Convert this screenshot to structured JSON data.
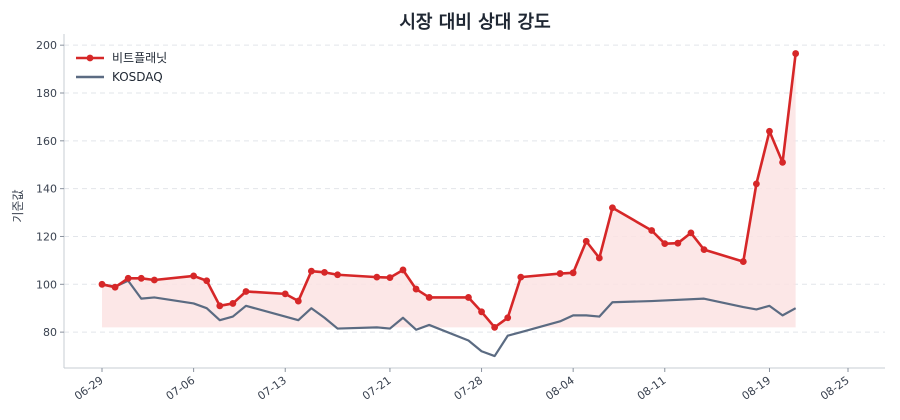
{
  "chart_data": {
    "type": "line",
    "title": "시장 대비 상대 강도",
    "xlabel": "",
    "ylabel": "기준값",
    "ylim": [
      65,
      203
    ],
    "yticks": [
      80,
      100,
      120,
      140,
      160,
      180,
      200
    ],
    "x": [
      "06-29",
      "06-30",
      "07-01",
      "07-02",
      "07-03",
      "07-04",
      "07-05",
      "07-06",
      "07-07",
      "07-08",
      "07-09",
      "07-10",
      "07-11",
      "07-12",
      "07-13",
      "07-14",
      "07-15",
      "07-16",
      "07-17",
      "07-18",
      "07-19",
      "07-20",
      "07-21",
      "07-22",
      "07-23",
      "07-24",
      "07-25",
      "07-26",
      "07-27",
      "07-28",
      "07-29",
      "07-30",
      "07-31",
      "08-01",
      "08-02",
      "08-03",
      "08-04",
      "08-05",
      "08-06",
      "08-07",
      "08-08",
      "08-09",
      "08-10",
      "08-11",
      "08-12",
      "08-13",
      "08-14",
      "08-15",
      "08-16",
      "08-17",
      "08-18",
      "08-19",
      "08-20",
      "08-21",
      "08-22",
      "08-23",
      "08-24",
      "08-25"
    ],
    "xtick_labels": [
      "06-29",
      "07-06",
      "07-13",
      "07-21",
      "07-28",
      "08-04",
      "08-11",
      "08-19",
      "08-25"
    ],
    "grid": "y-dashed",
    "legend": "top-left",
    "fill_between": {
      "series": "비트플래닛",
      "baseline": 82
    },
    "series": [
      {
        "name": "비트플래닛",
        "color": "#d62728",
        "fill_color": "#fbe3e3",
        "markers": true,
        "points": [
          {
            "x": "06-29",
            "y": 100.0
          },
          {
            "x": "06-30",
            "y": 98.8
          },
          {
            "x": "07-01",
            "y": 102.5
          },
          {
            "x": "07-02",
            "y": 102.5
          },
          {
            "x": "07-03",
            "y": 101.8
          },
          {
            "x": "07-06",
            "y": 103.5
          },
          {
            "x": "07-07",
            "y": 101.5
          },
          {
            "x": "07-08",
            "y": 91.0
          },
          {
            "x": "07-09",
            "y": 92.0
          },
          {
            "x": "07-10",
            "y": 97.0
          },
          {
            "x": "07-13",
            "y": 96.0
          },
          {
            "x": "07-14",
            "y": 93.0
          },
          {
            "x": "07-15",
            "y": 105.5
          },
          {
            "x": "07-16",
            "y": 105.0
          },
          {
            "x": "07-17",
            "y": 104.0
          },
          {
            "x": "07-20",
            "y": 103.0
          },
          {
            "x": "07-21",
            "y": 102.8
          },
          {
            "x": "07-22",
            "y": 106.0
          },
          {
            "x": "07-23",
            "y": 98.0
          },
          {
            "x": "07-24",
            "y": 94.5
          },
          {
            "x": "07-27",
            "y": 94.5
          },
          {
            "x": "07-28",
            "y": 88.5
          },
          {
            "x": "07-29",
            "y": 82.0
          },
          {
            "x": "07-30",
            "y": 86.0
          },
          {
            "x": "07-31",
            "y": 103.0
          },
          {
            "x": "08-03",
            "y": 104.5
          },
          {
            "x": "08-04",
            "y": 104.8
          },
          {
            "x": "08-05",
            "y": 118.0
          },
          {
            "x": "08-06",
            "y": 111.0
          },
          {
            "x": "08-07",
            "y": 132.0
          },
          {
            "x": "08-10",
            "y": 122.5
          },
          {
            "x": "08-11",
            "y": 117.0
          },
          {
            "x": "08-12",
            "y": 117.2
          },
          {
            "x": "08-13",
            "y": 121.5
          },
          {
            "x": "08-14",
            "y": 114.5
          },
          {
            "x": "08-17",
            "y": 109.5
          },
          {
            "x": "08-18",
            "y": 142.0
          },
          {
            "x": "08-19",
            "y": 164.0
          },
          {
            "x": "08-20",
            "y": 151.0
          },
          {
            "x": "08-21",
            "y": 196.5
          }
        ]
      },
      {
        "name": "KOSDAQ",
        "color": "#5b6b82",
        "markers": false,
        "points": [
          {
            "x": "06-29",
            "y": 100.0
          },
          {
            "x": "06-30",
            "y": 99.0
          },
          {
            "x": "07-01",
            "y": 101.5
          },
          {
            "x": "07-02",
            "y": 94.0
          },
          {
            "x": "07-03",
            "y": 94.5
          },
          {
            "x": "07-06",
            "y": 92.0
          },
          {
            "x": "07-07",
            "y": 90.0
          },
          {
            "x": "07-08",
            "y": 85.0
          },
          {
            "x": "07-09",
            "y": 86.5
          },
          {
            "x": "07-10",
            "y": 91.0
          },
          {
            "x": "07-13",
            "y": 86.5
          },
          {
            "x": "07-14",
            "y": 85.0
          },
          {
            "x": "07-15",
            "y": 90.0
          },
          {
            "x": "07-16",
            "y": 86.0
          },
          {
            "x": "07-17",
            "y": 81.5
          },
          {
            "x": "07-20",
            "y": 82.0
          },
          {
            "x": "07-21",
            "y": 81.5
          },
          {
            "x": "07-22",
            "y": 86.0
          },
          {
            "x": "07-23",
            "y": 81.0
          },
          {
            "x": "07-24",
            "y": 83.0
          },
          {
            "x": "07-27",
            "y": 76.5
          },
          {
            "x": "07-28",
            "y": 72.0
          },
          {
            "x": "07-29",
            "y": 70.0
          },
          {
            "x": "07-30",
            "y": 78.5
          },
          {
            "x": "07-31",
            "y": 80.0
          },
          {
            "x": "08-03",
            "y": 84.5
          },
          {
            "x": "08-04",
            "y": 87.0
          },
          {
            "x": "08-05",
            "y": 87.0
          },
          {
            "x": "08-06",
            "y": 86.5
          },
          {
            "x": "08-07",
            "y": 92.5
          },
          {
            "x": "08-10",
            "y": 93.0
          },
          {
            "x": "08-14",
            "y": 94.0
          },
          {
            "x": "08-17",
            "y": 90.5
          },
          {
            "x": "08-18",
            "y": 89.5
          },
          {
            "x": "08-19",
            "y": 91.0
          },
          {
            "x": "08-20",
            "y": 87.0
          },
          {
            "x": "08-21",
            "y": 90.0
          }
        ]
      }
    ]
  }
}
